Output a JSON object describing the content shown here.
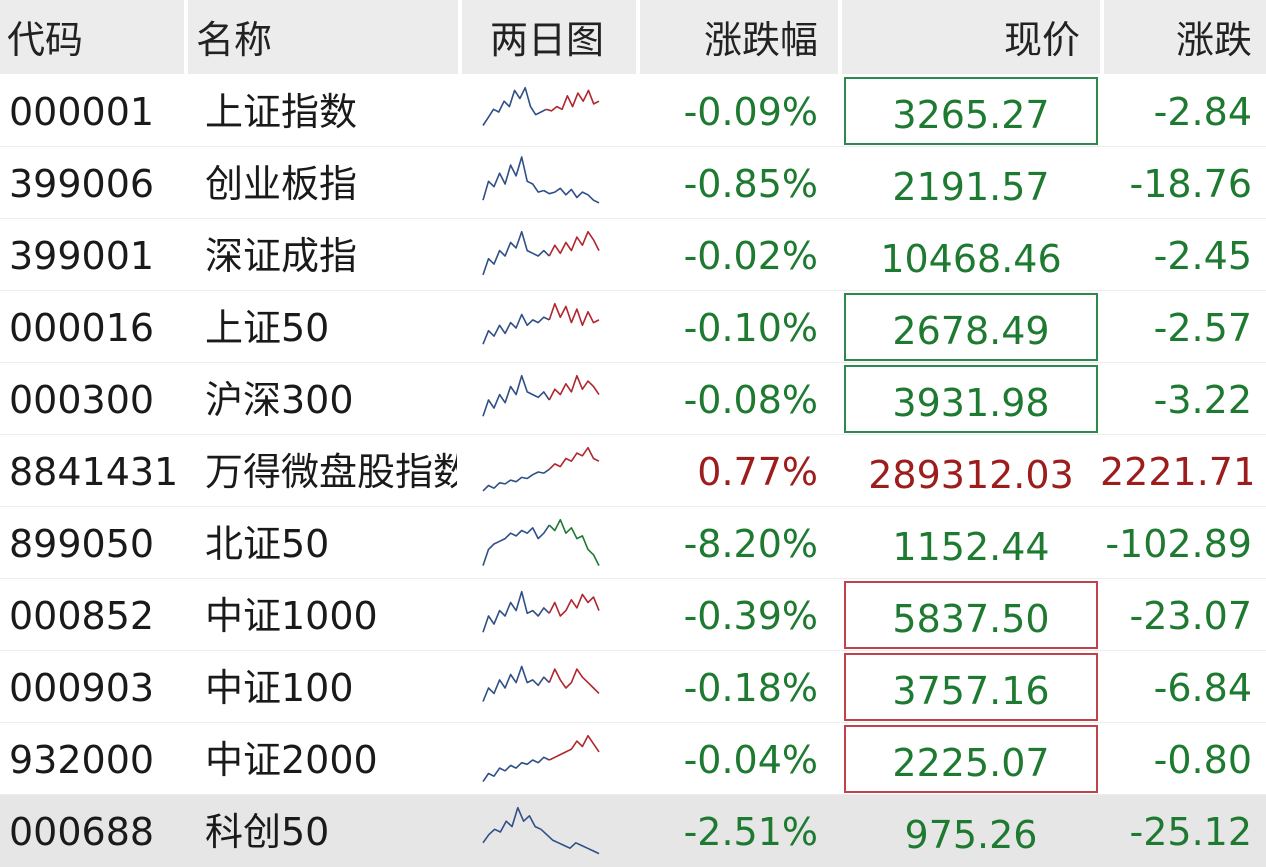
{
  "header": {
    "code": "代码",
    "name": "名称",
    "chart": "两日图",
    "pct": "涨跌幅",
    "price": "现价",
    "change": "涨跌"
  },
  "colors": {
    "down": "#1e7a30",
    "up": "#9d1d1d",
    "box_green": "#2c8a4c",
    "box_red": "#c0424a",
    "spark_blue": "#2f4f86",
    "spark_red": "#b1262d",
    "spark_green": "#1e7a30"
  },
  "rows": [
    {
      "code": "000001",
      "name": "上证指数",
      "pct": "-0.09%",
      "price": "3265.27",
      "change": "-2.84",
      "trend": "down",
      "box": "green",
      "spark": [
        0.25,
        0.4,
        0.55,
        0.5,
        0.7,
        0.6,
        0.9,
        0.75,
        0.95,
        0.6,
        0.45,
        0.5,
        0.55,
        0.52,
        0.6,
        0.55,
        0.8,
        0.6,
        0.85,
        0.7,
        0.9,
        0.65,
        0.7
      ],
      "split": 0.55,
      "second_color": "red"
    },
    {
      "code": "399006",
      "name": "创业板指",
      "pct": "-0.85%",
      "price": "2191.57",
      "change": "-18.76",
      "trend": "down",
      "box": "",
      "spark": [
        0.2,
        0.55,
        0.45,
        0.7,
        0.5,
        0.85,
        0.65,
        1.0,
        0.55,
        0.5,
        0.35,
        0.38,
        0.32,
        0.35,
        0.42,
        0.3,
        0.4,
        0.25,
        0.35,
        0.3,
        0.2,
        0.15
      ],
      "split": 0.5,
      "second_color": "blue"
    },
    {
      "code": "399001",
      "name": "深证成指",
      "pct": "-0.02%",
      "price": "10468.46",
      "change": "-2.45",
      "trend": "down",
      "box": "",
      "spark": [
        0.15,
        0.45,
        0.35,
        0.6,
        0.5,
        0.75,
        0.65,
        0.95,
        0.6,
        0.55,
        0.5,
        0.6,
        0.5,
        0.7,
        0.55,
        0.75,
        0.6,
        0.85,
        0.7,
        0.95,
        0.8,
        0.6
      ],
      "split": 0.55,
      "second_color": "red"
    },
    {
      "code": "000016",
      "name": "上证50",
      "pct": "-0.10%",
      "price": "2678.49",
      "change": "-2.57",
      "trend": "down",
      "box": "green",
      "spark": [
        0.2,
        0.45,
        0.35,
        0.55,
        0.4,
        0.6,
        0.5,
        0.75,
        0.55,
        0.65,
        0.6,
        0.7,
        0.65,
        0.95,
        0.7,
        0.9,
        0.6,
        0.85,
        0.55,
        0.8,
        0.6,
        0.65
      ],
      "split": 0.55,
      "second_color": "red"
    },
    {
      "code": "000300",
      "name": "沪深300",
      "pct": "-0.08%",
      "price": "3931.98",
      "change": "-3.22",
      "trend": "down",
      "box": "green",
      "spark": [
        0.2,
        0.5,
        0.35,
        0.6,
        0.45,
        0.75,
        0.6,
        0.95,
        0.65,
        0.6,
        0.55,
        0.65,
        0.5,
        0.7,
        0.6,
        0.8,
        0.65,
        0.95,
        0.7,
        0.85,
        0.75,
        0.6
      ],
      "split": 0.55,
      "second_color": "red"
    },
    {
      "code": "8841431",
      "name": "万得微盘股指数",
      "pct": "0.77%",
      "price": "289312.03",
      "change": "2221.71",
      "trend": "up",
      "box": "",
      "spark": [
        0.15,
        0.25,
        0.2,
        0.3,
        0.28,
        0.35,
        0.32,
        0.4,
        0.38,
        0.45,
        0.5,
        0.48,
        0.55,
        0.65,
        0.6,
        0.75,
        0.7,
        0.85,
        0.8,
        0.95,
        0.75,
        0.7
      ],
      "split": 0.55,
      "second_color": "red"
    },
    {
      "code": "899050",
      "name": "北证50",
      "pct": "-8.20%",
      "price": "1152.44",
      "change": "-102.89",
      "trend": "down",
      "box": "",
      "spark": [
        0.1,
        0.4,
        0.5,
        0.55,
        0.6,
        0.7,
        0.65,
        0.75,
        0.7,
        0.8,
        0.6,
        0.7,
        0.85,
        0.75,
        0.95,
        0.7,
        0.8,
        0.6,
        0.65,
        0.4,
        0.3,
        0.1
      ],
      "split": 0.55,
      "second_color": "green"
    },
    {
      "code": "000852",
      "name": "中证1000",
      "pct": "-0.39%",
      "price": "5837.50",
      "change": "-23.07",
      "trend": "down",
      "box": "red",
      "spark": [
        0.2,
        0.5,
        0.35,
        0.6,
        0.5,
        0.75,
        0.6,
        0.95,
        0.55,
        0.6,
        0.5,
        0.65,
        0.55,
        0.75,
        0.5,
        0.6,
        0.8,
        0.65,
        0.9,
        0.75,
        0.85,
        0.6
      ],
      "split": 0.55,
      "second_color": "red"
    },
    {
      "code": "000903",
      "name": "中证100",
      "pct": "-0.18%",
      "price": "3757.16",
      "change": "-6.84",
      "trend": "down",
      "box": "red",
      "spark": [
        0.25,
        0.5,
        0.4,
        0.65,
        0.5,
        0.75,
        0.6,
        0.9,
        0.6,
        0.65,
        0.55,
        0.7,
        0.6,
        0.85,
        0.65,
        0.5,
        0.6,
        0.85,
        0.7,
        0.6,
        0.5,
        0.4
      ],
      "split": 0.55,
      "second_color": "red"
    },
    {
      "code": "932000",
      "name": "中证2000",
      "pct": "-0.04%",
      "price": "2225.07",
      "change": "-0.80",
      "trend": "down",
      "box": "red",
      "spark": [
        0.1,
        0.25,
        0.2,
        0.35,
        0.3,
        0.4,
        0.35,
        0.45,
        0.42,
        0.5,
        0.45,
        0.55,
        0.5,
        0.55,
        0.6,
        0.65,
        0.7,
        0.85,
        0.75,
        0.95,
        0.8,
        0.65
      ],
      "split": 0.55,
      "second_color": "red"
    },
    {
      "code": "000688",
      "name": "科创50",
      "pct": "-2.51%",
      "price": "975.26",
      "change": "-25.12",
      "trend": "down",
      "box": "",
      "spark": [
        0.3,
        0.45,
        0.55,
        0.5,
        0.7,
        0.6,
        0.95,
        0.7,
        0.8,
        0.6,
        0.55,
        0.45,
        0.35,
        0.3,
        0.25,
        0.2,
        0.3,
        0.25,
        0.2,
        0.15,
        0.1
      ],
      "split": 0.5,
      "second_color": "blue",
      "shaded": true
    }
  ]
}
